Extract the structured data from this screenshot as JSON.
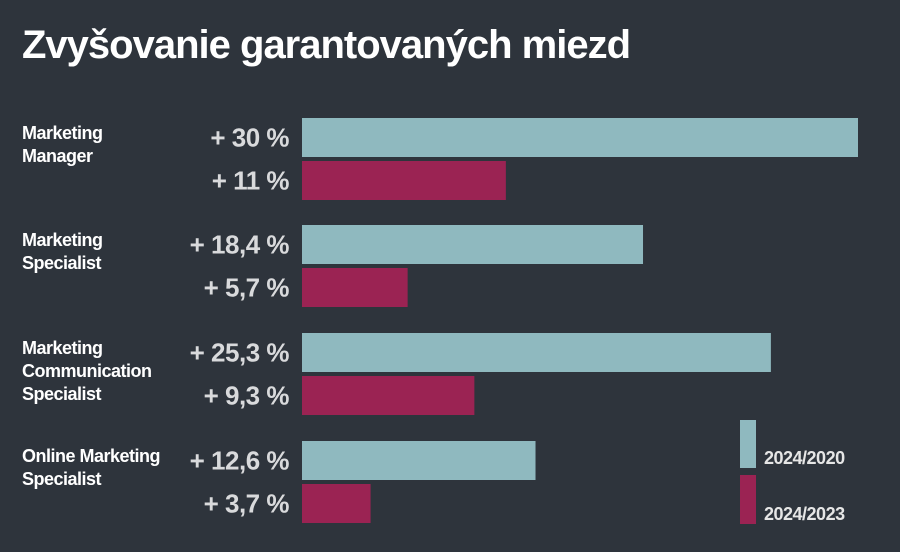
{
  "chart_data": {
    "type": "bar",
    "orientation": "horizontal",
    "title": "Zvyšovanie garantovaných miezd",
    "categories": [
      [
        "Marketing",
        "Manager"
      ],
      [
        "Marketing",
        "Specialist"
      ],
      [
        "Marketing",
        "Communication",
        "Specialist"
      ],
      [
        "Online Marketing",
        "Specialist"
      ]
    ],
    "series": [
      {
        "name": "2024/2020",
        "color": "#8fb9bf",
        "values": [
          30,
          18.4,
          25.3,
          12.6
        ],
        "labels": [
          "+ 30 %",
          "+ 18,4 %",
          "+ 25,3 %",
          "+ 12,6 %"
        ]
      },
      {
        "name": "2024/2023",
        "color": "#9b2353",
        "values": [
          11,
          5.7,
          9.3,
          3.7
        ],
        "labels": [
          "+ 11 %",
          "+ 5,7 %",
          "+ 9,3 %",
          "+ 3,7 %"
        ]
      }
    ],
    "xlim": [
      0,
      30
    ],
    "grid": false,
    "legend_position": "bottom-right"
  }
}
